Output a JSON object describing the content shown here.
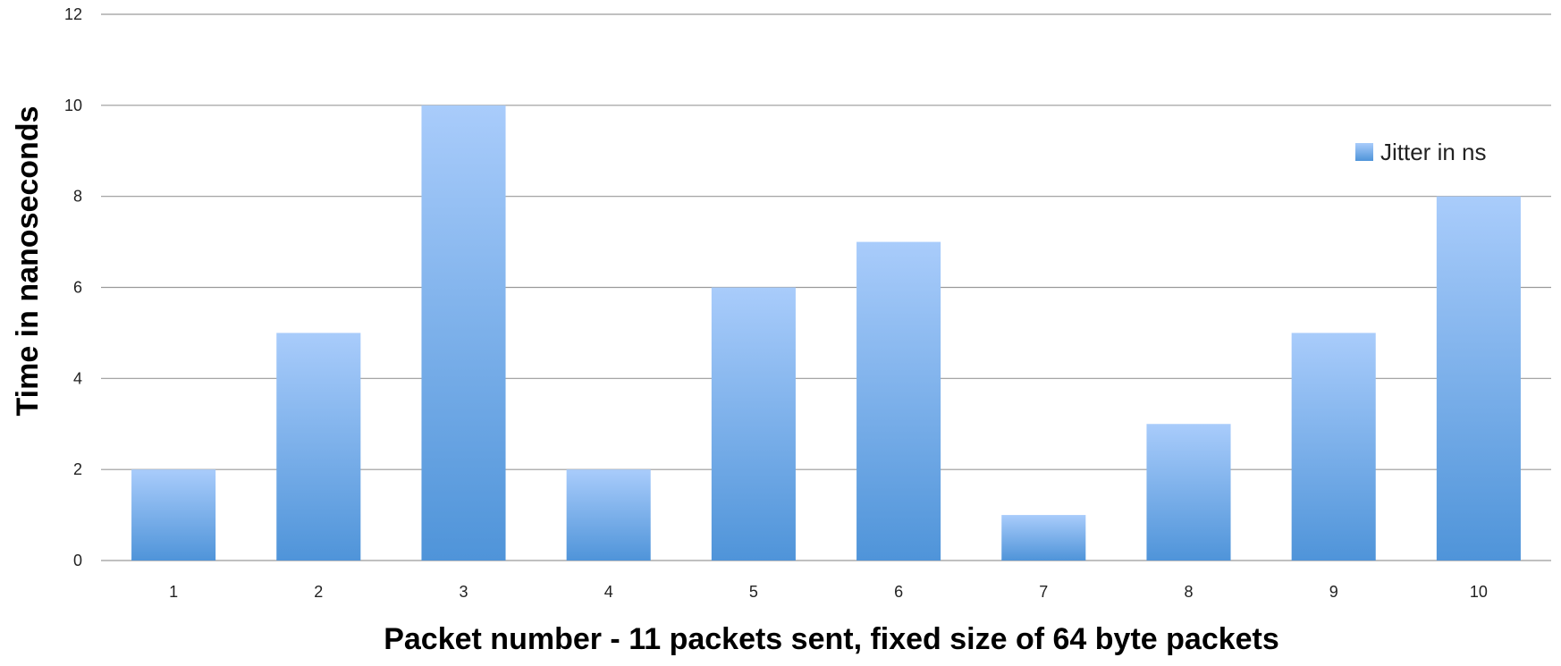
{
  "chart_data": {
    "type": "bar",
    "categories": [
      "1",
      "2",
      "3",
      "4",
      "5",
      "6",
      "7",
      "8",
      "9",
      "10"
    ],
    "series": [
      {
        "name": "Jitter in ns",
        "values": [
          2,
          5,
          10,
          2,
          6,
          7,
          1,
          3,
          5,
          8
        ]
      }
    ],
    "xlabel": "Packet number - 11 packets sent, fixed size of 64 byte packets",
    "ylabel": "Time in nanoseconds",
    "ylim": [
      0,
      12
    ],
    "yticks": [
      0,
      2,
      4,
      6,
      8,
      10,
      12
    ],
    "grid": true,
    "legend_position": "right",
    "colors": {
      "bar_top": "#a9ccfb",
      "bar_bottom": "#4f94d9",
      "grid": "#9a9a9a"
    }
  }
}
